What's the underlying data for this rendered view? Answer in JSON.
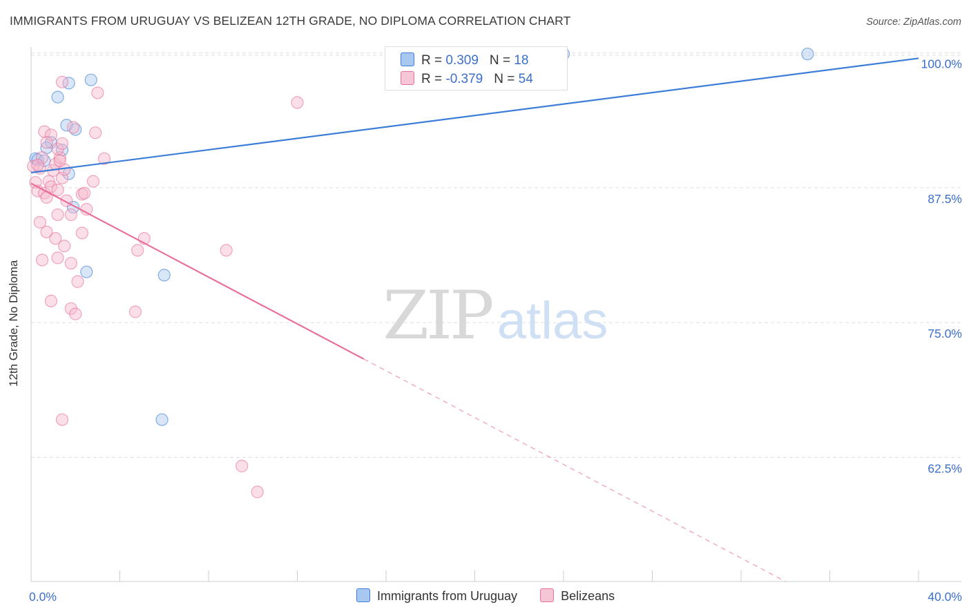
{
  "title": "IMMIGRANTS FROM URUGUAY VS BELIZEAN 12TH GRADE, NO DIPLOMA CORRELATION CHART",
  "source": "Source: ZipAtlas.com",
  "watermark": {
    "zip": "ZIP",
    "atlas": "atlas"
  },
  "colors": {
    "blue": "#3b7dd8",
    "blue_fill": "#a8c8f0",
    "pink": "#e8709a",
    "pink_fill": "#f5b8cb",
    "axis_text": "#3b6fc9",
    "grid": "#dddddd"
  },
  "legend": {
    "rows": [
      {
        "r_label": "R = ",
        "r_value": "0.309",
        "n_label": "N = ",
        "n_value": "18"
      },
      {
        "r_label": "R = ",
        "r_value": "-0.379",
        "n_label": "N = ",
        "n_value": "54"
      }
    ]
  },
  "bottom_legend": [
    "Immigrants from Uruguay",
    "Belizeans"
  ],
  "chart_data": {
    "type": "scatter",
    "title": "IMMIGRANTS FROM URUGUAY VS BELIZEAN 12TH GRADE, NO DIPLOMA CORRELATION CHART",
    "xlabel": "",
    "ylabel": "12th Grade, No Diploma",
    "xlim": [
      0,
      40
    ],
    "ylim": [
      51,
      101
    ],
    "x_tick_labels": [
      "0.0%",
      "40.0%"
    ],
    "y_ticks": [
      62.5,
      75.0,
      87.5,
      100.0
    ],
    "y_tick_labels": [
      "62.5%",
      "75.0%",
      "87.5%",
      "100.0%"
    ],
    "grid": true,
    "series": [
      {
        "name": "Immigrants from Uruguay",
        "color": "#3b7dd8",
        "r": 0.309,
        "n": 18,
        "trend": {
          "x0": 0,
          "y0": 88.9,
          "x1": 40,
          "y1": 99.5,
          "dashed_from": null
        },
        "points": [
          [
            0.2,
            90.2
          ],
          [
            0.3,
            90.1
          ],
          [
            0.6,
            90.0
          ],
          [
            0.9,
            91.7
          ],
          [
            0.7,
            91.2
          ],
          [
            1.4,
            91.0
          ],
          [
            1.7,
            88.8
          ],
          [
            1.2,
            95.9
          ],
          [
            1.6,
            93.3
          ],
          [
            2.0,
            92.9
          ],
          [
            1.7,
            97.2
          ],
          [
            2.7,
            97.5
          ],
          [
            1.9,
            85.7
          ],
          [
            2.5,
            79.7
          ],
          [
            6.0,
            79.4
          ],
          [
            5.9,
            66.0
          ],
          [
            24.0,
            99.9
          ],
          [
            35.0,
            99.9
          ]
        ]
      },
      {
        "name": "Belizeans",
        "color": "#e8709a",
        "r": -0.379,
        "n": 54,
        "trend": {
          "x0": 0,
          "y0": 87.9,
          "x1": 34,
          "y1": 51,
          "dashed_from": 15.0
        },
        "points": [
          [
            0.1,
            89.5
          ],
          [
            0.2,
            88.0
          ],
          [
            0.3,
            87.2
          ],
          [
            0.4,
            89.3
          ],
          [
            0.5,
            90.3
          ],
          [
            0.6,
            87.0
          ],
          [
            0.7,
            86.6
          ],
          [
            0.8,
            88.1
          ],
          [
            0.9,
            87.6
          ],
          [
            1.0,
            89.1
          ],
          [
            1.1,
            89.7
          ],
          [
            1.2,
            87.3
          ],
          [
            1.3,
            90.3
          ],
          [
            1.4,
            88.4
          ],
          [
            1.5,
            89.2
          ],
          [
            1.6,
            86.3
          ],
          [
            0.6,
            92.7
          ],
          [
            0.9,
            92.4
          ],
          [
            0.7,
            91.7
          ],
          [
            1.2,
            91.1
          ],
          [
            1.4,
            91.6
          ],
          [
            1.9,
            93.1
          ],
          [
            2.3,
            86.9
          ],
          [
            2.4,
            87.0
          ],
          [
            2.5,
            85.5
          ],
          [
            2.8,
            88.1
          ],
          [
            2.9,
            92.6
          ],
          [
            3.3,
            90.2
          ],
          [
            1.8,
            85.0
          ],
          [
            1.2,
            85.0
          ],
          [
            0.4,
            84.3
          ],
          [
            0.7,
            83.4
          ],
          [
            1.1,
            82.8
          ],
          [
            1.5,
            82.1
          ],
          [
            2.3,
            83.3
          ],
          [
            0.5,
            80.8
          ],
          [
            1.2,
            81.0
          ],
          [
            1.8,
            80.5
          ],
          [
            2.1,
            78.8
          ],
          [
            0.9,
            77.0
          ],
          [
            1.8,
            76.3
          ],
          [
            2.0,
            75.8
          ],
          [
            4.7,
            76.0
          ],
          [
            4.8,
            81.7
          ],
          [
            5.1,
            82.8
          ],
          [
            8.8,
            81.7
          ],
          [
            1.4,
            97.3
          ],
          [
            3.0,
            96.3
          ],
          [
            12.0,
            95.4
          ],
          [
            1.4,
            66.0
          ],
          [
            9.5,
            61.7
          ],
          [
            10.2,
            59.3
          ],
          [
            0.3,
            89.6
          ],
          [
            1.3,
            90.0
          ]
        ]
      }
    ]
  }
}
